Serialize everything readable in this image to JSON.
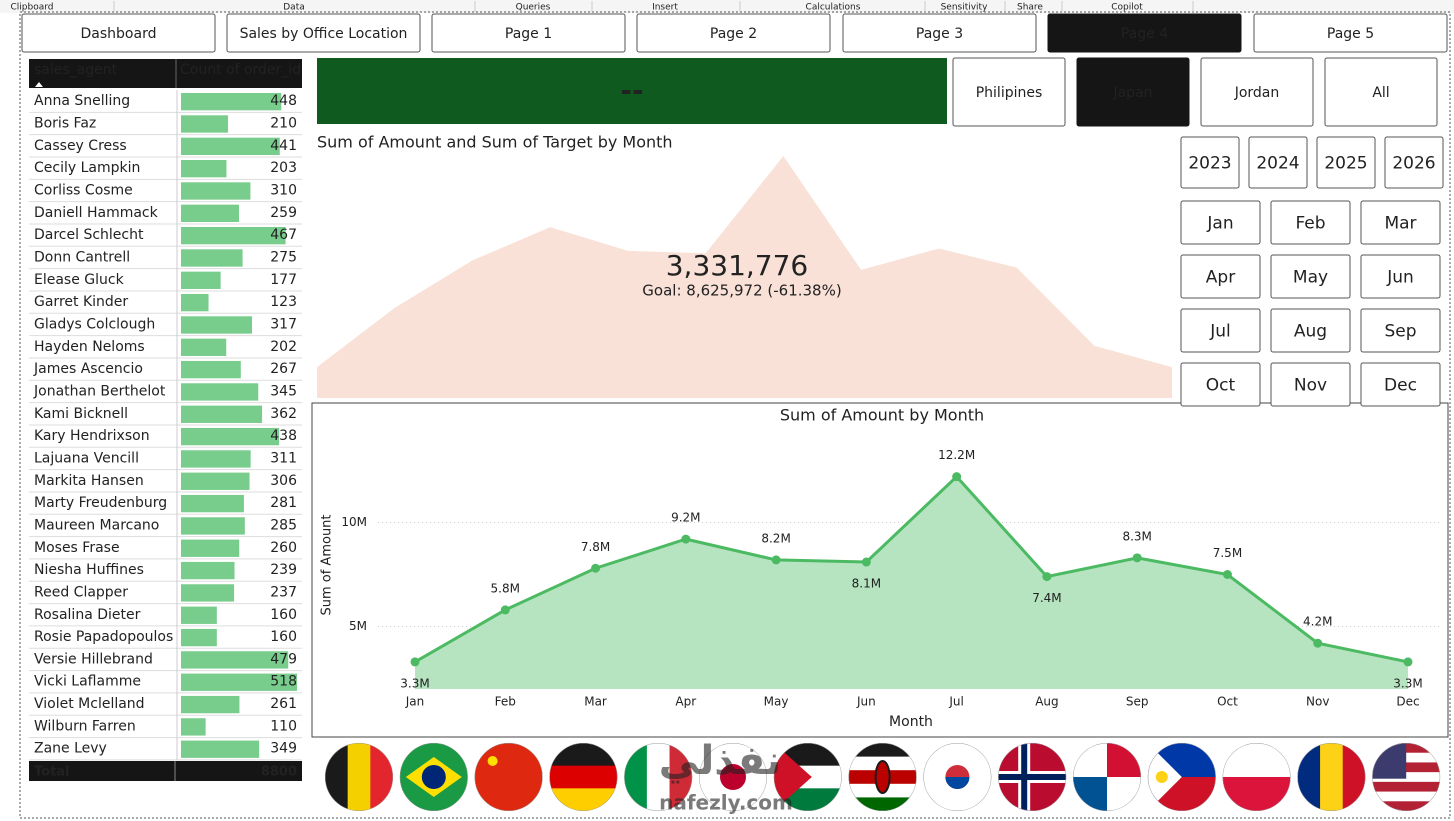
{
  "ribbon": [
    "Clipboard",
    "Data",
    "Queries",
    "Insert",
    "Calculations",
    "Sensitivity",
    "Share",
    "Copilot"
  ],
  "nav": [
    "Dashboard",
    "Sales by Office Location",
    "Page 1",
    "Page 2",
    "Page 3",
    "Page 4",
    "Page 5"
  ],
  "table": {
    "header": [
      "sales_agent",
      "Count of order_id"
    ],
    "rows": [
      [
        "Anna Snelling",
        448
      ],
      [
        "Boris Faz",
        210
      ],
      [
        "Cassey Cress",
        441
      ],
      [
        "Cecily Lampkin",
        203
      ],
      [
        "Corliss Cosme",
        310
      ],
      [
        "Daniell Hammack",
        259
      ],
      [
        "Darcel Schlecht",
        467
      ],
      [
        "Donn Cantrell",
        275
      ],
      [
        "Elease Gluck",
        177
      ],
      [
        "Garret Kinder",
        123
      ],
      [
        "Gladys Colclough",
        317
      ],
      [
        "Hayden Neloms",
        202
      ],
      [
        "James Ascencio",
        267
      ],
      [
        "Jonathan Berthelot",
        345
      ],
      [
        "Kami Bicknell",
        362
      ],
      [
        "Kary Hendrixson",
        438
      ],
      [
        "Lajuana Vencill",
        311
      ],
      [
        "Markita Hansen",
        306
      ],
      [
        "Marty Freudenburg",
        281
      ],
      [
        "Maureen Marcano",
        285
      ],
      [
        "Moses Frase",
        260
      ],
      [
        "Niesha Huffines",
        239
      ],
      [
        "Reed Clapper",
        237
      ],
      [
        "Rosalina Dieter",
        160
      ],
      [
        "Rosie Papadopoulos",
        160
      ],
      [
        "Versie Hillebrand",
        479
      ],
      [
        "Vicki Laflamme",
        518
      ],
      [
        "Violet Mclelland",
        261
      ],
      [
        "Wilburn Farren",
        110
      ],
      [
        "Zane Levy",
        349
      ]
    ],
    "total": [
      "Total",
      8800
    ]
  },
  "kpi_card": "--",
  "countries": [
    "Philipines",
    "Japan",
    "Jordan",
    "All"
  ],
  "years": [
    "2023",
    "2024",
    "2025",
    "2026"
  ],
  "months": [
    "Jan",
    "Feb",
    "Mar",
    "Apr",
    "May",
    "Jun",
    "Jul",
    "Aug",
    "Sep",
    "Oct",
    "Nov",
    "Dec"
  ],
  "kpi_chart": {
    "title": "Sum of Amount and Sum of Target by Month",
    "value": "3,331,776",
    "goal": "Goal: 8,625,972 (-61.38%)"
  },
  "chart_data": {
    "type": "line",
    "title": "Sum of Amount by Month",
    "x_label": "Month",
    "y_label": "Sum of Amount",
    "categories": [
      "Jan",
      "Feb",
      "Mar",
      "Apr",
      "May",
      "Jun",
      "Jul",
      "Aug",
      "Sep",
      "Oct",
      "Nov",
      "Dec"
    ],
    "values": [
      3300000,
      5800000,
      7800000,
      9200000,
      8200000,
      8100000,
      12200000,
      7400000,
      8300000,
      7500000,
      4200000,
      3300000
    ],
    "value_labels": [
      "3.3M",
      "5.8M",
      "7.8M",
      "9.2M",
      "8.2M",
      "8.1M",
      "12.2M",
      "7.4M",
      "8.3M",
      "7.5M",
      "4.2M",
      "3.3M"
    ],
    "color": "#4cba62",
    "area_color": "#b6e4c1",
    "ylim": [
      2000000,
      13000000
    ],
    "yticks": [
      {
        "value": 5000000,
        "label": "5M"
      },
      {
        "value": 10000000,
        "label": "10M"
      }
    ],
    "grid": true
  },
  "watermark": [
    "نفذلي",
    "nafezly.com"
  ]
}
